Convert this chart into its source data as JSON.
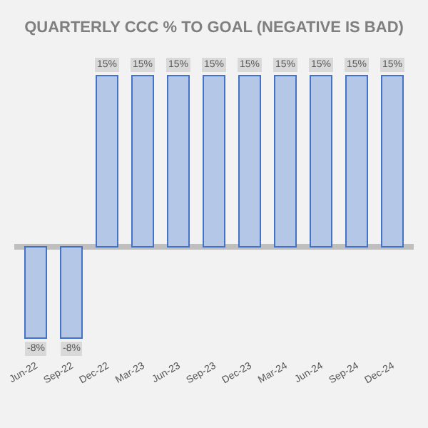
{
  "chart_data": {
    "type": "bar",
    "title": "QUARTERLY CCC % TO GOAL (NEGATIVE IS BAD)",
    "categories": [
      "Jun-22",
      "Sep-22",
      "Dec-22",
      "Mar-23",
      "Jun-23",
      "Sep-23",
      "Dec-23",
      "Mar-24",
      "Jun-24",
      "Sep-24",
      "Dec-24"
    ],
    "values": [
      -8,
      -8,
      15,
      15,
      15,
      15,
      15,
      15,
      15,
      15,
      15
    ],
    "value_labels": [
      "-8%",
      "-8%",
      "15%",
      "15%",
      "15%",
      "15%",
      "15%",
      "15%",
      "15%",
      "15%",
      "15%"
    ],
    "color": "#b4c7e7",
    "grid": false,
    "legend": false
  }
}
